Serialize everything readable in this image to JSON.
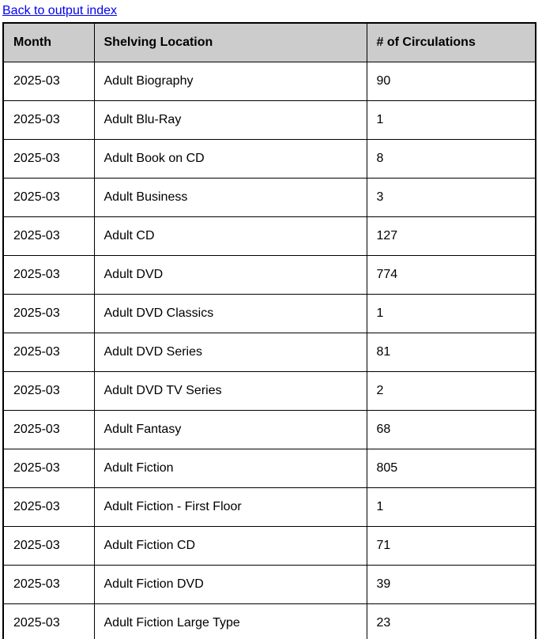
{
  "page": {
    "back_link_label": "Back to output index"
  },
  "colors": {
    "link": "#0000EE",
    "header_bg": "#cccccc",
    "border": "#000000",
    "text": "#000000",
    "background": "#ffffff"
  },
  "table": {
    "headers": [
      "Month",
      "Shelving Location",
      "# of Circulations"
    ],
    "rows": [
      {
        "month": "2025-03",
        "location": "Adult Biography",
        "circulations": "90"
      },
      {
        "month": "2025-03",
        "location": "Adult Blu-Ray",
        "circulations": "1"
      },
      {
        "month": "2025-03",
        "location": "Adult Book on CD",
        "circulations": "8"
      },
      {
        "month": "2025-03",
        "location": "Adult Business",
        "circulations": "3"
      },
      {
        "month": "2025-03",
        "location": "Adult CD",
        "circulations": "127"
      },
      {
        "month": "2025-03",
        "location": "Adult DVD",
        "circulations": "774"
      },
      {
        "month": "2025-03",
        "location": "Adult DVD Classics",
        "circulations": "1"
      },
      {
        "month": "2025-03",
        "location": "Adult DVD Series",
        "circulations": "81"
      },
      {
        "month": "2025-03",
        "location": "Adult DVD TV Series",
        "circulations": "2"
      },
      {
        "month": "2025-03",
        "location": "Adult Fantasy",
        "circulations": "68"
      },
      {
        "month": "2025-03",
        "location": "Adult Fiction",
        "circulations": "805"
      },
      {
        "month": "2025-03",
        "location": "Adult Fiction - First Floor",
        "circulations": "1"
      },
      {
        "month": "2025-03",
        "location": "Adult Fiction CD",
        "circulations": "71"
      },
      {
        "month": "2025-03",
        "location": "Adult Fiction DVD",
        "circulations": "39"
      },
      {
        "month": "2025-03",
        "location": "Adult Fiction Large Type",
        "circulations": "23"
      }
    ]
  }
}
